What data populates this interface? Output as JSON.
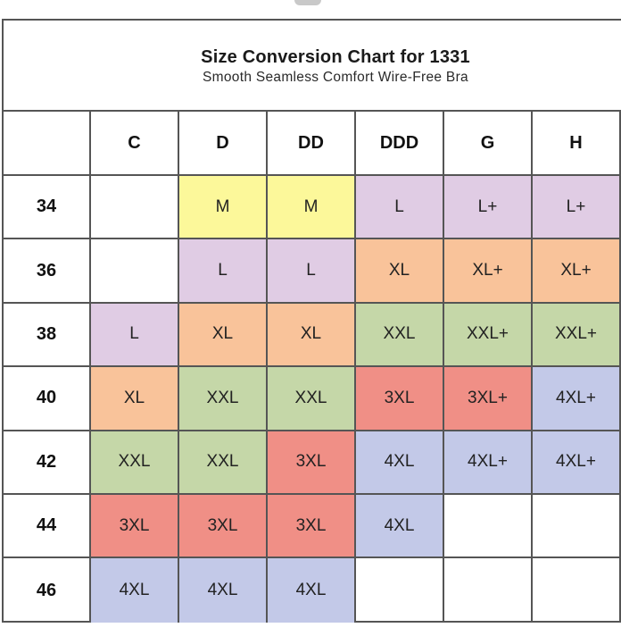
{
  "chart": {
    "title": "Size Conversion Chart for 1331",
    "subtitle": "Smooth Seamless Comfort Wire-Free Bra",
    "columns": [
      "C",
      "D",
      "DD",
      "DDD",
      "G",
      "H"
    ],
    "rows": [
      {
        "band": "34",
        "cells": [
          {
            "v": "",
            "c": ""
          },
          {
            "v": "M",
            "c": "#fcf89a"
          },
          {
            "v": "M",
            "c": "#fcf89a"
          },
          {
            "v": "L",
            "c": "#e0cce4"
          },
          {
            "v": "L+",
            "c": "#e0cce4"
          },
          {
            "v": "L+",
            "c": "#e0cce4"
          }
        ]
      },
      {
        "band": "36",
        "cells": [
          {
            "v": "",
            "c": ""
          },
          {
            "v": "L",
            "c": "#e0cce4"
          },
          {
            "v": "L",
            "c": "#e0cce4"
          },
          {
            "v": "XL",
            "c": "#f9c39a"
          },
          {
            "v": "XL+",
            "c": "#f9c39a"
          },
          {
            "v": "XL+",
            "c": "#f9c39a"
          }
        ]
      },
      {
        "band": "38",
        "cells": [
          {
            "v": "L",
            "c": "#e0cce4"
          },
          {
            "v": "XL",
            "c": "#f9c39a"
          },
          {
            "v": "XL",
            "c": "#f9c39a"
          },
          {
            "v": "XXL",
            "c": "#c5d7a8"
          },
          {
            "v": "XXL+",
            "c": "#c5d7a8"
          },
          {
            "v": "XXL+",
            "c": "#c5d7a8"
          }
        ]
      },
      {
        "band": "40",
        "cells": [
          {
            "v": "XL",
            "c": "#f9c39a"
          },
          {
            "v": "XXL",
            "c": "#c5d7a8"
          },
          {
            "v": "XXL",
            "c": "#c5d7a8"
          },
          {
            "v": "3XL",
            "c": "#f08f86"
          },
          {
            "v": "3XL+",
            "c": "#f08f86"
          },
          {
            "v": "4XL+",
            "c": "#c3c9e8"
          }
        ]
      },
      {
        "band": "42",
        "cells": [
          {
            "v": "XXL",
            "c": "#c5d7a8"
          },
          {
            "v": "XXL",
            "c": "#c5d7a8"
          },
          {
            "v": "3XL",
            "c": "#f08f86"
          },
          {
            "v": "4XL",
            "c": "#c3c9e8"
          },
          {
            "v": "4XL+",
            "c": "#c3c9e8"
          },
          {
            "v": "4XL+",
            "c": "#c3c9e8"
          }
        ]
      },
      {
        "band": "44",
        "cells": [
          {
            "v": "3XL",
            "c": "#f08f86"
          },
          {
            "v": "3XL",
            "c": "#f08f86"
          },
          {
            "v": "3XL",
            "c": "#f08f86"
          },
          {
            "v": "4XL",
            "c": "#c3c9e8"
          },
          {
            "v": "",
            "c": ""
          },
          {
            "v": "",
            "c": ""
          }
        ]
      },
      {
        "band": "46",
        "cells": [
          {
            "v": "4XL",
            "c": "#c3c9e8"
          },
          {
            "v": "4XL",
            "c": "#c3c9e8"
          },
          {
            "v": "4XL",
            "c": "#c3c9e8"
          },
          {
            "v": "",
            "c": ""
          },
          {
            "v": "",
            "c": ""
          },
          {
            "v": "",
            "c": ""
          }
        ]
      }
    ]
  }
}
